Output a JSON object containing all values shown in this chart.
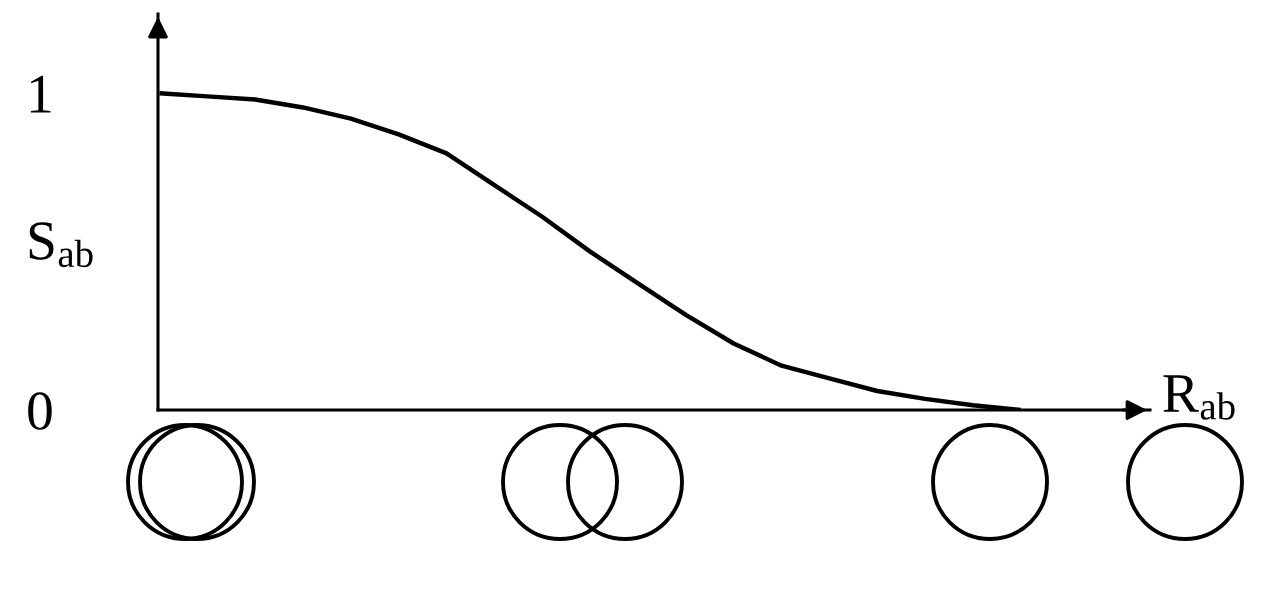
{
  "chart_data": {
    "type": "line",
    "xlabel": "R$_{ab}$",
    "ylabel": "S$_{ab}$",
    "categories": [
      null,
      null,
      null,
      null,
      null,
      null,
      null,
      null,
      null,
      null,
      null,
      null,
      null,
      null,
      null,
      null,
      null,
      null,
      null
    ],
    "series": [
      {
        "color": "#000000",
        "values": [
          1.0,
          0.99,
          0.98,
          0.955,
          0.92,
          0.87,
          0.81,
          0.71,
          0.61,
          0.5,
          0.4,
          0.3,
          0.21,
          0.14,
          0.1,
          0.06,
          0.035,
          0.015,
          0.0
        ]
      }
    ],
    "ylim": [
      0,
      1.25
    ],
    "yticks": [
      0,
      1
    ],
    "grid": false,
    "legend": false,
    "marker": "none",
    "line_style": "solid"
  }
}
